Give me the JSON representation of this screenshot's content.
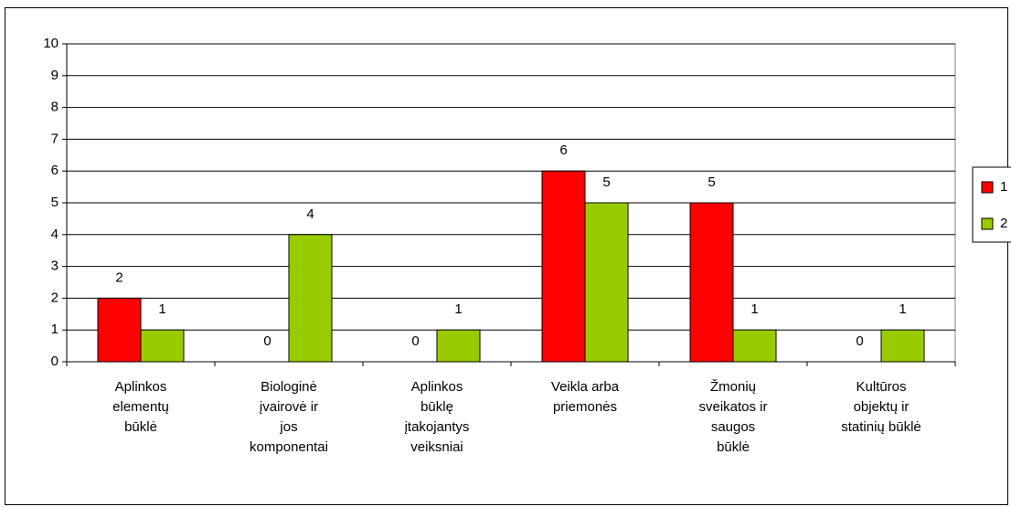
{
  "chart_data": {
    "type": "bar",
    "categories": [
      "Aplinkos\nelementų\nbūklė",
      "Biologinė\nįvairovė ir\njos\nkomponentai",
      "Aplinkos\nbūklę\nįtakojantys\nveiksniai",
      "Veikla arba\npriemonės",
      "Žmonių\nsveikatos ir\nsaugos\nbūklė",
      "Kultūros\nobjektų ir\nstatinių būklė"
    ],
    "series": [
      {
        "name": "1",
        "color": "#ff0000",
        "values": [
          2,
          0,
          0,
          6,
          5,
          0
        ]
      },
      {
        "name": "2",
        "color": "#99cc00",
        "values": [
          1,
          4,
          1,
          5,
          1,
          1
        ]
      }
    ],
    "ylim": [
      0,
      10
    ],
    "yticks": [
      0,
      1,
      2,
      3,
      4,
      5,
      6,
      7,
      8,
      9,
      10
    ],
    "grid": true,
    "legend": "right"
  }
}
